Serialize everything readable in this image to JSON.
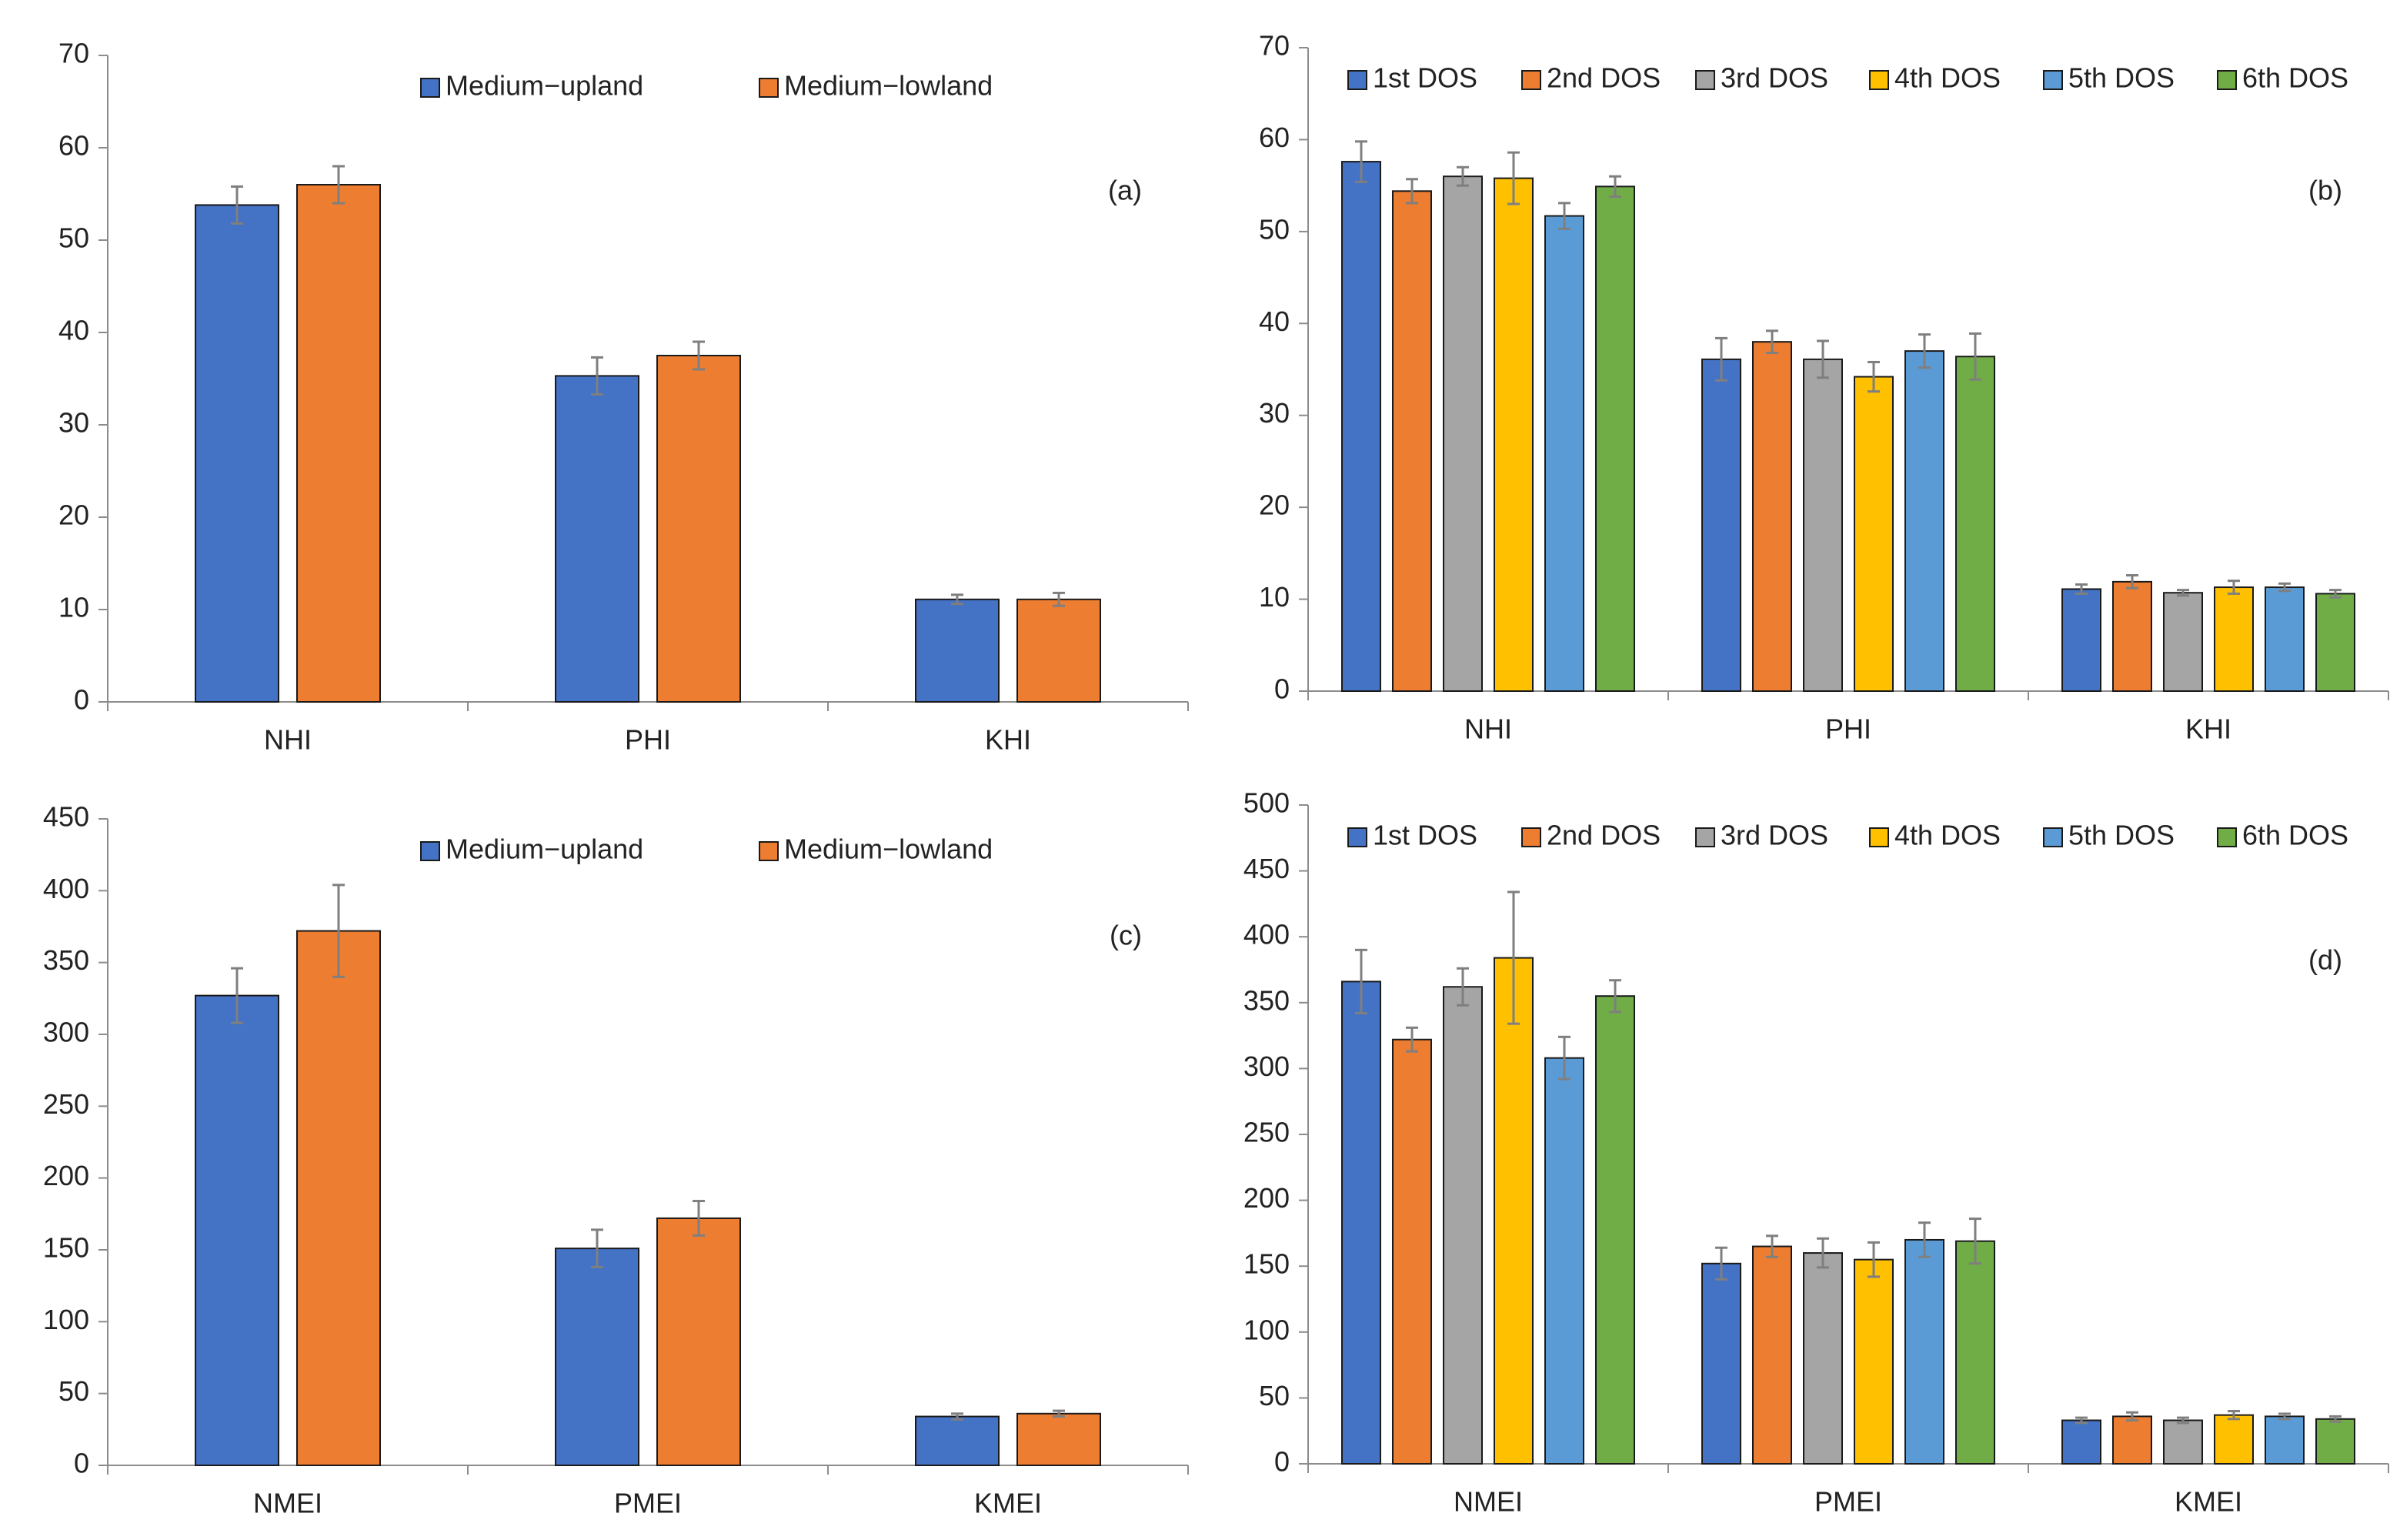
{
  "chart_data": [
    {
      "type": "bar",
      "panel_label": "(a)",
      "categories": [
        "NHI",
        "PHI",
        "KHI"
      ],
      "ylim": [
        0,
        70
      ],
      "yticks": [
        0,
        10,
        20,
        30,
        40,
        50,
        60,
        70
      ],
      "legend": "top",
      "series": [
        {
          "name": "Medium−upland",
          "color": "#4472c4",
          "values": [
            53.8,
            35.3,
            11.1
          ],
          "errors": [
            2.0,
            2.0,
            0.5
          ]
        },
        {
          "name": "Medium−lowland",
          "color": "#ed7d31",
          "values": [
            56.0,
            37.5,
            11.1
          ],
          "errors": [
            2.0,
            1.5,
            0.7
          ]
        }
      ]
    },
    {
      "type": "bar",
      "panel_label": "(b)",
      "categories": [
        "NHI",
        "PHI",
        "KHI"
      ],
      "ylim": [
        0,
        70
      ],
      "yticks": [
        0,
        10,
        20,
        30,
        40,
        50,
        60,
        70
      ],
      "legend": "top",
      "series": [
        {
          "name": "1st DOS",
          "color": "#4472c4",
          "values": [
            57.6,
            36.1,
            11.1
          ],
          "errors": [
            2.2,
            2.3,
            0.5
          ]
        },
        {
          "name": "2nd DOS",
          "color": "#ed7d31",
          "values": [
            54.4,
            38.0,
            11.9
          ],
          "errors": [
            1.3,
            1.2,
            0.7
          ]
        },
        {
          "name": "3rd DOS",
          "color": "#a5a5a5",
          "values": [
            56.0,
            36.1,
            10.7
          ],
          "errors": [
            1.0,
            2.0,
            0.3
          ]
        },
        {
          "name": "4th DOS",
          "color": "#ffc000",
          "values": [
            55.8,
            34.2,
            11.3
          ],
          "errors": [
            2.8,
            1.6,
            0.7
          ]
        },
        {
          "name": "5th DOS",
          "color": "#5b9bd5",
          "values": [
            51.7,
            37.0,
            11.3
          ],
          "errors": [
            1.4,
            1.8,
            0.4
          ]
        },
        {
          "name": "6th DOS",
          "color": "#70ad47",
          "values": [
            54.9,
            36.4,
            10.6
          ],
          "errors": [
            1.1,
            2.5,
            0.4
          ]
        }
      ]
    },
    {
      "type": "bar",
      "panel_label": "(c)",
      "categories": [
        "NMEI",
        "PMEI",
        "KMEI"
      ],
      "ylim": [
        0,
        450
      ],
      "yticks": [
        0,
        50,
        100,
        150,
        200,
        250,
        300,
        350,
        400,
        450
      ],
      "legend": "top",
      "series": [
        {
          "name": "Medium−upland",
          "color": "#4472c4",
          "values": [
            327,
            151,
            34
          ],
          "errors": [
            19,
            13,
            2
          ]
        },
        {
          "name": "Medium−lowland",
          "color": "#ed7d31",
          "values": [
            372,
            172,
            36
          ],
          "errors": [
            32,
            12,
            2
          ]
        }
      ]
    },
    {
      "type": "bar",
      "panel_label": "(d)",
      "categories": [
        "NMEI",
        "PMEI",
        "KMEI"
      ],
      "ylim": [
        0,
        500
      ],
      "yticks": [
        0,
        50,
        100,
        150,
        200,
        250,
        300,
        350,
        400,
        450,
        500
      ],
      "legend": "top",
      "series": [
        {
          "name": "1st DOS",
          "color": "#4472c4",
          "values": [
            366,
            152,
            33
          ],
          "errors": [
            24,
            12,
            2
          ]
        },
        {
          "name": "2nd DOS",
          "color": "#ed7d31",
          "values": [
            322,
            165,
            36
          ],
          "errors": [
            9,
            8,
            3
          ]
        },
        {
          "name": "3rd DOS",
          "color": "#a5a5a5",
          "values": [
            362,
            160,
            33
          ],
          "errors": [
            14,
            11,
            2
          ]
        },
        {
          "name": "4th DOS",
          "color": "#ffc000",
          "values": [
            384,
            155,
            37
          ],
          "errors": [
            50,
            13,
            3
          ]
        },
        {
          "name": "5th DOS",
          "color": "#5b9bd5",
          "values": [
            308,
            170,
            36
          ],
          "errors": [
            16,
            13,
            2
          ]
        },
        {
          "name": "6th DOS",
          "color": "#70ad47",
          "values": [
            355,
            169,
            34
          ],
          "errors": [
            12,
            17,
            2
          ]
        }
      ]
    }
  ]
}
